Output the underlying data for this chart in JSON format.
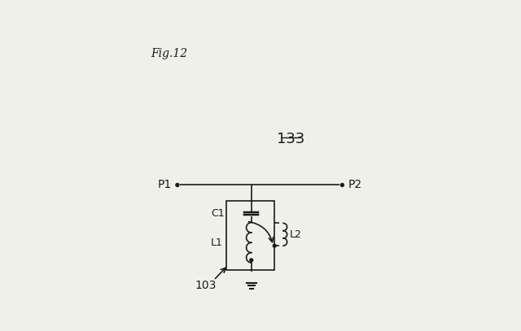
{
  "fig_label": "Fig.12",
  "component_label": "133",
  "port_labels": [
    "P1",
    "P2"
  ],
  "component_id": "103",
  "element_labels": [
    "C1",
    "L1",
    "L2"
  ],
  "background_color": "#f0f0eb",
  "line_color": "#1a1a1a",
  "text_color": "#1a1a1a",
  "fig_width": 6.4,
  "fig_height": 4.07,
  "dpi": 100
}
